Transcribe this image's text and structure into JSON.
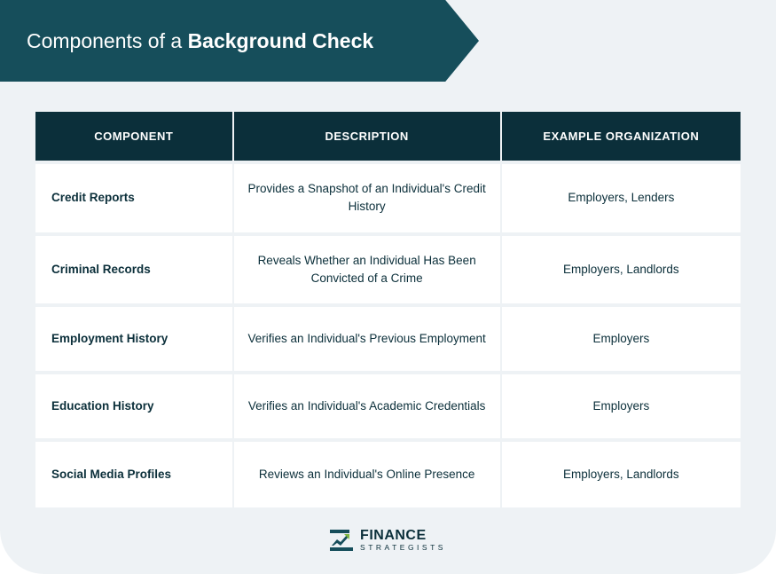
{
  "title": {
    "prefix": "Components of a ",
    "bold": "Background Check"
  },
  "colors": {
    "banner_bg": "#164e5b",
    "header_row_bg": "#0b2f3a",
    "card_bg": "#eef2f5",
    "cell_bg": "#ffffff",
    "cell_text": "#0b2f3a",
    "header_text": "#ffffff"
  },
  "table": {
    "type": "table",
    "columns": [
      "COMPONENT",
      "DESCRIPTION",
      "EXAMPLE ORGANIZATION"
    ],
    "column_widths_pct": [
      28,
      38,
      34
    ],
    "header_fontsize_pt": 10,
    "cell_fontsize_pt": 10,
    "rows": [
      [
        "Credit Reports",
        "Provides a Snapshot of an Individual's Credit History",
        "Employers, Lenders"
      ],
      [
        "Criminal Records",
        "Reveals Whether an Individual Has Been Convicted of a Crime",
        "Employers, Landlords"
      ],
      [
        "Employment History",
        "Verifies an Individual's Previous Employment",
        "Employers"
      ],
      [
        "Education History",
        "Verifies an Individual's Academic Credentials",
        "Employers"
      ],
      [
        "Social Media Profiles",
        "Reviews an Individual's Online Presence",
        "Employers, Landlords"
      ]
    ]
  },
  "logo": {
    "name": "FINANCE",
    "subtitle": "STRATEGISTS",
    "mark_color_dark": "#164e5b",
    "mark_color_accent": "#7fb742"
  }
}
